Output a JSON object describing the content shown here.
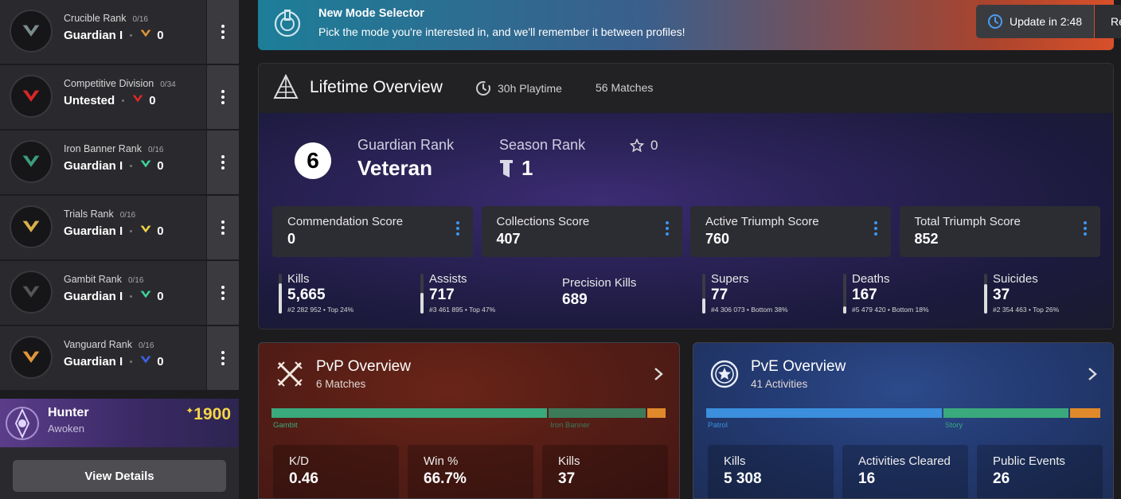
{
  "sidebar": {
    "ranks": [
      {
        "name": "Crucible Rank",
        "progress": "0/16",
        "value": "Guardian I",
        "resets": "0",
        "color": "#e0963a",
        "emblem_color": "#7a8b8b"
      },
      {
        "name": "Competitive Division",
        "progress": "0/34",
        "value": "Untested",
        "resets": "0",
        "color": "#e02828",
        "emblem_color": "#d72626"
      },
      {
        "name": "Iron Banner Rank",
        "progress": "0/16",
        "value": "Guardian I",
        "resets": "0",
        "color": "#3fd59a",
        "emblem_color": "#3c9c78"
      },
      {
        "name": "Trials Rank",
        "progress": "0/16",
        "value": "Guardian I",
        "resets": "0",
        "color": "#f5d547",
        "emblem_color": "#d7b14a"
      },
      {
        "name": "Gambit Rank",
        "progress": "0/16",
        "value": "Guardian I",
        "resets": "0",
        "color": "#3fd59a",
        "emblem_color": "#555"
      },
      {
        "name": "Vanguard Rank",
        "progress": "0/16",
        "value": "Guardian I",
        "resets": "0",
        "color": "#3d63f0",
        "emblem_color": "#e0963a"
      }
    ],
    "character": {
      "class": "Hunter",
      "race": "Awoken",
      "light_prefix": "✦",
      "light": "1900"
    },
    "view_details_label": "View Details"
  },
  "banner": {
    "title": "New Mode Selector",
    "text": "Pick the mode you're interested in, and we'll remember it between profiles!",
    "update_label": "Update in 2:48",
    "refresh_label": "Re"
  },
  "lifetime": {
    "title": "Lifetime Overview",
    "playtime": "30h Playtime",
    "matches": "56 Matches",
    "guardian_rank": {
      "number": "6",
      "label": "Guardian Rank",
      "value": "Veteran"
    },
    "season_rank": {
      "label": "Season Rank",
      "value": "1",
      "stars": "0"
    },
    "scores": [
      {
        "label": "Commendation Score",
        "value": "0"
      },
      {
        "label": "Collections Score",
        "value": "407"
      },
      {
        "label": "Active Triumph Score",
        "value": "760"
      },
      {
        "label": "Total Triumph Score",
        "value": "852"
      }
    ],
    "stats": [
      {
        "label": "Kills",
        "value": "5,665",
        "sub": "#2 282 952 • Top 24%",
        "level": 0.76
      },
      {
        "label": "Assists",
        "value": "717",
        "sub": "#3 461 895 • Top 47%",
        "level": 0.53
      },
      {
        "label": "Precision Kills",
        "value": "689",
        "sub": "",
        "level": null
      },
      {
        "label": "Supers",
        "value": "77",
        "sub": "#4 306 073 • Bottom 38%",
        "level": 0.38
      },
      {
        "label": "Deaths",
        "value": "167",
        "sub": "#5 479 420 • Bottom 18%",
        "level": 0.18
      },
      {
        "label": "Suicides",
        "value": "37",
        "sub": "#2 354 463 • Top 26%",
        "level": 0.74
      }
    ]
  },
  "pvp": {
    "title": "PvP Overview",
    "subtitle": "6 Matches",
    "segments": [
      {
        "label": "Gambit",
        "share": 0.7,
        "color": "#3aa97c"
      },
      {
        "label": "Iron Banner",
        "share": 0.25,
        "color": "#3d7a5a"
      },
      {
        "label": "",
        "share": 0.05,
        "color": "#e0892b"
      }
    ],
    "stats": [
      {
        "label": "K/D",
        "value": "0.46"
      },
      {
        "label": "Win %",
        "value": "66.7%"
      },
      {
        "label": "Kills",
        "value": "37"
      }
    ]
  },
  "pve": {
    "title": "PvE Overview",
    "subtitle": "41 Activities",
    "segments": [
      {
        "label": "Patrol",
        "share": 0.6,
        "color": "#3b8fdd"
      },
      {
        "label": "Story",
        "share": 0.32,
        "color": "#3aa97c"
      },
      {
        "label": "",
        "share": 0.08,
        "color": "#e0892b"
      }
    ],
    "stats": [
      {
        "label": "Kills",
        "value": "5 308"
      },
      {
        "label": "Activities Cleared",
        "value": "16"
      },
      {
        "label": "Public Events",
        "value": "26"
      }
    ]
  }
}
